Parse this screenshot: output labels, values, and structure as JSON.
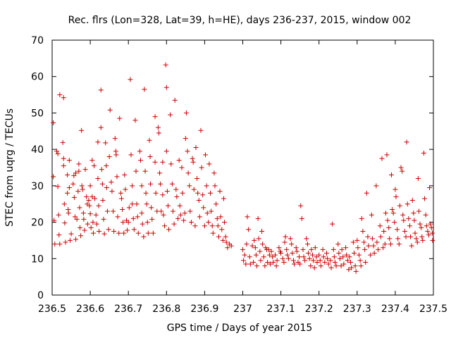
{
  "chart_data": {
    "type": "scatter",
    "title": "Rec. flrs (Lon=328, Lat=39, h=HE), days 236-237, 2015, window 002",
    "xlabel": "GPS time / Days of year 2015",
    "ylabel": "STEC from uqrg / TECUs",
    "xlim": [
      236.5,
      237.5
    ],
    "ylim": [
      0,
      70
    ],
    "x_ticks": [
      "236.5",
      "236.6",
      "236.7",
      "236.8",
      "236.9",
      "237",
      "237.1",
      "237.2",
      "237.3",
      "237.4",
      "237.5"
    ],
    "x_tick_values": [
      236.5,
      236.6,
      236.7,
      236.8,
      236.9,
      237.0,
      237.1,
      237.2,
      237.3,
      237.4,
      237.5
    ],
    "y_ticks": [
      "0",
      "10",
      "20",
      "30",
      "40",
      "50",
      "60",
      "70"
    ],
    "y_tick_values": [
      0,
      10,
      20,
      30,
      40,
      50,
      60,
      70
    ],
    "marker": "plus",
    "color": "#cc0000",
    "grid": false,
    "points": [
      [
        236.503,
        47.3
      ],
      [
        236.503,
        32.5
      ],
      [
        236.505,
        20.5
      ],
      [
        236.507,
        14.0
      ],
      [
        236.512,
        39.5
      ],
      [
        236.515,
        38.8
      ],
      [
        236.515,
        29.8
      ],
      [
        236.517,
        22.0
      ],
      [
        236.518,
        16.5
      ],
      [
        236.52,
        14.0
      ],
      [
        236.52,
        55.0
      ],
      [
        236.528,
        41.9
      ],
      [
        236.53,
        54.2
      ],
      [
        236.53,
        37.5
      ],
      [
        236.53,
        35.5
      ],
      [
        236.532,
        25.0
      ],
      [
        236.533,
        19.8
      ],
      [
        236.535,
        14.5
      ],
      [
        236.54,
        33.0
      ],
      [
        236.54,
        28.0
      ],
      [
        236.542,
        23.5
      ],
      [
        236.543,
        22.5
      ],
      [
        236.545,
        37.0
      ],
      [
        236.545,
        29.5
      ],
      [
        236.547,
        15.0
      ],
      [
        236.55,
        16.8
      ],
      [
        236.555,
        30.5
      ],
      [
        236.557,
        32.8
      ],
      [
        236.558,
        26.8
      ],
      [
        236.56,
        21.5
      ],
      [
        236.562,
        33.5
      ],
      [
        236.562,
        15.3
      ],
      [
        236.565,
        20.8
      ],
      [
        236.568,
        28.5
      ],
      [
        236.57,
        36.0
      ],
      [
        236.57,
        34.0
      ],
      [
        236.572,
        24.0
      ],
      [
        236.573,
        18.5
      ],
      [
        236.575,
        16.3
      ],
      [
        236.577,
        45.2
      ],
      [
        236.578,
        30.0
      ],
      [
        236.58,
        29.0
      ],
      [
        236.582,
        22.5
      ],
      [
        236.583,
        20.8
      ],
      [
        236.585,
        17.8
      ],
      [
        236.587,
        34.5
      ],
      [
        236.59,
        27.0
      ],
      [
        236.592,
        25.0
      ],
      [
        236.593,
        19.5
      ],
      [
        236.596,
        26.0
      ],
      [
        236.598,
        24.5
      ],
      [
        236.6,
        30.0
      ],
      [
        236.6,
        22.3
      ],
      [
        236.602,
        18.5
      ],
      [
        236.605,
        37.0
      ],
      [
        236.605,
        27.0
      ],
      [
        236.607,
        20.0
      ],
      [
        236.608,
        17.0
      ],
      [
        236.61,
        35.5
      ],
      [
        236.612,
        26.5
      ],
      [
        236.615,
        22.0
      ],
      [
        236.617,
        19.5
      ],
      [
        236.62,
        42.0
      ],
      [
        236.62,
        32.0
      ],
      [
        236.622,
        24.5
      ],
      [
        236.623,
        17.5
      ],
      [
        236.628,
        56.3
      ],
      [
        236.628,
        46.0
      ],
      [
        236.63,
        34.5
      ],
      [
        236.632,
        30.5
      ],
      [
        236.633,
        26.0
      ],
      [
        236.635,
        20.8
      ],
      [
        236.637,
        16.8
      ],
      [
        236.64,
        41.8
      ],
      [
        236.642,
        35.5
      ],
      [
        236.643,
        29.5
      ],
      [
        236.645,
        23.0
      ],
      [
        236.648,
        18.0
      ],
      [
        236.65,
        38.0
      ],
      [
        236.652,
        50.8
      ],
      [
        236.655,
        31.0
      ],
      [
        236.657,
        28.5
      ],
      [
        236.66,
        23.0
      ],
      [
        236.662,
        17.5
      ],
      [
        236.665,
        43.0
      ],
      [
        236.667,
        39.5
      ],
      [
        236.668,
        38.5
      ],
      [
        236.67,
        32.5
      ],
      [
        236.672,
        21.5
      ],
      [
        236.675,
        17.0
      ],
      [
        236.677,
        48.5
      ],
      [
        236.68,
        28.0
      ],
      [
        236.682,
        26.5
      ],
      [
        236.684,
        23.5
      ],
      [
        236.686,
        20.0
      ],
      [
        236.688,
        17.0
      ],
      [
        236.69,
        33.0
      ],
      [
        236.692,
        29.0
      ],
      [
        236.695,
        20.5
      ],
      [
        236.697,
        17.8
      ],
      [
        236.7,
        20.0
      ],
      [
        236.702,
        24.0
      ],
      [
        236.705,
        59.2
      ],
      [
        236.707,
        38.5
      ],
      [
        236.71,
        30.0
      ],
      [
        236.71,
        25.0
      ],
      [
        236.713,
        21.0
      ],
      [
        236.715,
        18.0
      ],
      [
        236.718,
        48.0
      ],
      [
        236.72,
        34.0
      ],
      [
        236.722,
        25.0
      ],
      [
        236.724,
        21.5
      ],
      [
        236.726,
        17.0
      ],
      [
        236.73,
        39.5
      ],
      [
        236.732,
        37.0
      ],
      [
        236.735,
        30.0
      ],
      [
        236.735,
        22.5
      ],
      [
        236.737,
        19.5
      ],
      [
        236.74,
        16.0
      ],
      [
        236.742,
        56.5
      ],
      [
        236.744,
        34.0
      ],
      [
        236.746,
        28.0
      ],
      [
        236.748,
        25.0
      ],
      [
        236.75,
        20.0
      ],
      [
        236.752,
        17.0
      ],
      [
        236.755,
        42.5
      ],
      [
        236.757,
        38.0
      ],
      [
        236.758,
        30.5
      ],
      [
        236.76,
        24.0
      ],
      [
        236.762,
        20.8
      ],
      [
        236.765,
        17.0
      ],
      [
        236.77,
        49.0
      ],
      [
        236.77,
        36.5
      ],
      [
        236.772,
        28.0
      ],
      [
        236.775,
        23.0
      ],
      [
        236.778,
        46.0
      ],
      [
        236.78,
        44.5
      ],
      [
        236.782,
        33.5
      ],
      [
        236.784,
        30.5
      ],
      [
        236.786,
        23.0
      ],
      [
        236.79,
        36.5
      ],
      [
        236.79,
        27.5
      ],
      [
        236.792,
        22.0
      ],
      [
        236.795,
        19.0
      ],
      [
        236.798,
        63.2
      ],
      [
        236.8,
        57.0
      ],
      [
        236.8,
        39.5
      ],
      [
        236.802,
        28.5
      ],
      [
        236.804,
        24.5
      ],
      [
        236.806,
        18.0
      ],
      [
        236.81,
        49.5
      ],
      [
        236.812,
        36.0
      ],
      [
        236.815,
        30.5
      ],
      [
        236.817,
        23.0
      ],
      [
        236.82,
        19.5
      ],
      [
        236.822,
        53.5
      ],
      [
        236.825,
        29.0
      ],
      [
        236.827,
        27.0
      ],
      [
        236.83,
        21.0
      ],
      [
        236.833,
        37.0
      ],
      [
        236.835,
        24.5
      ],
      [
        236.837,
        22.0
      ],
      [
        236.84,
        35.0
      ],
      [
        236.842,
        28.0
      ],
      [
        236.845,
        20.5
      ],
      [
        236.848,
        22.5
      ],
      [
        236.85,
        43.0
      ],
      [
        236.852,
        50.0
      ],
      [
        236.855,
        39.5
      ],
      [
        236.857,
        33.5
      ],
      [
        236.86,
        30.0
      ],
      [
        236.862,
        23.0
      ],
      [
        236.865,
        20.0
      ],
      [
        236.868,
        37.5
      ],
      [
        236.87,
        36.5
      ],
      [
        236.872,
        29.0
      ],
      [
        236.875,
        19.0
      ],
      [
        236.877,
        40.5
      ],
      [
        236.88,
        32.0
      ],
      [
        236.882,
        28.0
      ],
      [
        236.885,
        26.0
      ],
      [
        236.887,
        21.5
      ],
      [
        236.89,
        45.2
      ],
      [
        236.892,
        35.0
      ],
      [
        236.895,
        27.5
      ],
      [
        236.897,
        24.0
      ],
      [
        236.9,
        19.0
      ],
      [
        236.902,
        38.5
      ],
      [
        236.905,
        30.0
      ],
      [
        236.907,
        22.5
      ],
      [
        236.91,
        20.0
      ],
      [
        236.912,
        36.0
      ],
      [
        236.915,
        28.0
      ],
      [
        236.917,
        23.0
      ],
      [
        236.92,
        19.0
      ],
      [
        236.922,
        17.0
      ],
      [
        236.925,
        33.5
      ],
      [
        236.927,
        30.0
      ],
      [
        236.93,
        25.0
      ],
      [
        236.933,
        21.0
      ],
      [
        236.935,
        19.0
      ],
      [
        236.937,
        16.0
      ],
      [
        236.94,
        28.5
      ],
      [
        236.942,
        21.5
      ],
      [
        236.945,
        18.0
      ],
      [
        236.948,
        15.0
      ],
      [
        236.95,
        26.5
      ],
      [
        236.952,
        20.0
      ],
      [
        236.955,
        16.0
      ],
      [
        236.957,
        14.5
      ],
      [
        236.96,
        13.0
      ],
      [
        236.965,
        14.0
      ],
      [
        236.97,
        13.5
      ],
      [
        237.0,
        12.5
      ],
      [
        237.002,
        9.5
      ],
      [
        237.005,
        11.0
      ],
      [
        237.008,
        8.5
      ],
      [
        237.01,
        14.0
      ],
      [
        237.012,
        21.5
      ],
      [
        237.015,
        18.0
      ],
      [
        237.018,
        10.5
      ],
      [
        237.02,
        8.5
      ],
      [
        237.025,
        13.5
      ],
      [
        237.028,
        9.0
      ],
      [
        237.03,
        15.0
      ],
      [
        237.033,
        13.0
      ],
      [
        237.035,
        11.0
      ],
      [
        237.037,
        8.0
      ],
      [
        237.04,
        21.0
      ],
      [
        237.042,
        15.5
      ],
      [
        237.045,
        12.0
      ],
      [
        237.047,
        9.5
      ],
      [
        237.05,
        17.5
      ],
      [
        237.052,
        14.0
      ],
      [
        237.055,
        10.5
      ],
      [
        237.058,
        8.0
      ],
      [
        237.06,
        13.0
      ],
      [
        237.063,
        12.5
      ],
      [
        237.065,
        9.0
      ],
      [
        237.068,
        12.5
      ],
      [
        237.07,
        11.0
      ],
      [
        237.072,
        8.5
      ],
      [
        237.075,
        12.0
      ],
      [
        237.078,
        10.5
      ],
      [
        237.08,
        9.0
      ],
      [
        237.085,
        11.0
      ],
      [
        237.088,
        8.0
      ],
      [
        237.09,
        9.5
      ],
      [
        237.095,
        13.0
      ],
      [
        237.098,
        12.0
      ],
      [
        237.1,
        11.5
      ],
      [
        237.105,
        10.0
      ],
      [
        237.108,
        9.0
      ],
      [
        237.11,
        14.5
      ],
      [
        237.112,
        16.0
      ],
      [
        237.115,
        12.5
      ],
      [
        237.117,
        11.0
      ],
      [
        237.12,
        10.0
      ],
      [
        237.125,
        15.5
      ],
      [
        237.128,
        14.0
      ],
      [
        237.13,
        11.5
      ],
      [
        237.133,
        9.5
      ],
      [
        237.135,
        8.5
      ],
      [
        237.14,
        13.0
      ],
      [
        237.142,
        12.0
      ],
      [
        237.145,
        9.0
      ],
      [
        237.148,
        10.5
      ],
      [
        237.15,
        8.5
      ],
      [
        237.152,
        24.5
      ],
      [
        237.155,
        21.0
      ],
      [
        237.158,
        12.5
      ],
      [
        237.16,
        10.5
      ],
      [
        237.163,
        9.5
      ],
      [
        237.167,
        15.5
      ],
      [
        237.17,
        14.0
      ],
      [
        237.172,
        11.5
      ],
      [
        237.175,
        10.0
      ],
      [
        237.178,
        8.0
      ],
      [
        237.18,
        12.5
      ],
      [
        237.183,
        11.0
      ],
      [
        237.185,
        9.5
      ],
      [
        237.188,
        7.5
      ],
      [
        237.19,
        13.0
      ],
      [
        237.193,
        10.5
      ],
      [
        237.195,
        9.0
      ],
      [
        237.2,
        11.0
      ],
      [
        237.203,
        9.5
      ],
      [
        237.205,
        8.0
      ],
      [
        237.21,
        12.5
      ],
      [
        237.212,
        10.5
      ],
      [
        237.215,
        9.0
      ],
      [
        237.22,
        11.5
      ],
      [
        237.222,
        10.0
      ],
      [
        237.225,
        8.5
      ],
      [
        237.23,
        9.5
      ],
      [
        237.232,
        7.5
      ],
      [
        237.235,
        19.5
      ],
      [
        237.238,
        12.5
      ],
      [
        237.24,
        10.5
      ],
      [
        237.242,
        9.0
      ],
      [
        237.245,
        8.0
      ],
      [
        237.25,
        14.0
      ],
      [
        237.252,
        11.5
      ],
      [
        237.255,
        10.0
      ],
      [
        237.258,
        8.0
      ],
      [
        237.26,
        12.5
      ],
      [
        237.263,
        10.5
      ],
      [
        237.265,
        8.5
      ],
      [
        237.27,
        13.0
      ],
      [
        237.272,
        11.0
      ],
      [
        237.275,
        9.5
      ],
      [
        237.278,
        7.0
      ],
      [
        237.28,
        10.5
      ],
      [
        237.283,
        9.0
      ],
      [
        237.285,
        7.5
      ],
      [
        237.29,
        14.5
      ],
      [
        237.292,
        11.5
      ],
      [
        237.295,
        8.0
      ],
      [
        237.297,
        6.5
      ],
      [
        237.3,
        15.0
      ],
      [
        237.302,
        13.0
      ],
      [
        237.305,
        11.0
      ],
      [
        237.308,
        9.5
      ],
      [
        237.31,
        8.0
      ],
      [
        237.312,
        21.0
      ],
      [
        237.315,
        17.5
      ],
      [
        237.318,
        14.5
      ],
      [
        237.32,
        12.5
      ],
      [
        237.322,
        9.0
      ],
      [
        237.325,
        28.0
      ],
      [
        237.328,
        16.0
      ],
      [
        237.33,
        13.5
      ],
      [
        237.335,
        11.0
      ],
      [
        237.338,
        22.0
      ],
      [
        237.34,
        15.5
      ],
      [
        237.343,
        13.5
      ],
      [
        237.345,
        11.5
      ],
      [
        237.35,
        30.0
      ],
      [
        237.352,
        14.5
      ],
      [
        237.355,
        12.5
      ],
      [
        237.36,
        19.0
      ],
      [
        237.362,
        16.0
      ],
      [
        237.365,
        37.5
      ],
      [
        237.368,
        13.0
      ],
      [
        237.37,
        17.5
      ],
      [
        237.373,
        14.0
      ],
      [
        237.375,
        22.5
      ],
      [
        237.378,
        38.5
      ],
      [
        237.38,
        20.5
      ],
      [
        237.383,
        18.5
      ],
      [
        237.385,
        15.5
      ],
      [
        237.388,
        14.0
      ],
      [
        237.39,
        33.0
      ],
      [
        237.392,
        23.5
      ],
      [
        237.395,
        22.5
      ],
      [
        237.398,
        20.0
      ],
      [
        237.4,
        29.0
      ],
      [
        237.402,
        27.0
      ],
      [
        237.405,
        18.0
      ],
      [
        237.407,
        15.5
      ],
      [
        237.41,
        14.0
      ],
      [
        237.412,
        24.5
      ],
      [
        237.415,
        35.0
      ],
      [
        237.418,
        34.0
      ],
      [
        237.42,
        22.0
      ],
      [
        237.422,
        20.5
      ],
      [
        237.425,
        17.5
      ],
      [
        237.428,
        16.0
      ],
      [
        237.43,
        42.0
      ],
      [
        237.432,
        25.0
      ],
      [
        237.435,
        21.0
      ],
      [
        237.438,
        19.0
      ],
      [
        237.44,
        16.0
      ],
      [
        237.443,
        13.5
      ],
      [
        237.445,
        26.0
      ],
      [
        237.448,
        22.5
      ],
      [
        237.45,
        20.5
      ],
      [
        237.452,
        17.0
      ],
      [
        237.455,
        15.5
      ],
      [
        237.458,
        14.5
      ],
      [
        237.46,
        32.0
      ],
      [
        237.462,
        23.0
      ],
      [
        237.465,
        19.5
      ],
      [
        237.468,
        18.5
      ],
      [
        237.47,
        16.0
      ],
      [
        237.472,
        15.0
      ],
      [
        237.475,
        39.0
      ],
      [
        237.477,
        26.5
      ],
      [
        237.48,
        22.0
      ],
      [
        237.482,
        19.0
      ],
      [
        237.485,
        17.5
      ],
      [
        237.488,
        16.5
      ],
      [
        237.49,
        29.5
      ],
      [
        237.492,
        19.5
      ],
      [
        237.495,
        18.5
      ],
      [
        237.497,
        17.0
      ],
      [
        237.498,
        15.0
      ]
    ]
  }
}
